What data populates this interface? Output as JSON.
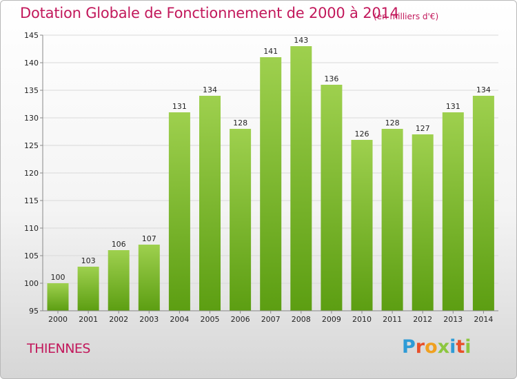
{
  "title": "Dotation Globale de Fonctionnement de 2000 à 2014",
  "unit_note": "(en milliers d'€)",
  "commune": "THIENNES",
  "logo": {
    "text": "Proxiti",
    "colors": [
      "#2e9bd6",
      "#e8502a",
      "#f0a020",
      "#8cc63f",
      "#2e9bd6",
      "#e8502a",
      "#8cc63f"
    ]
  },
  "colors": {
    "bar_top": "#9ed04e",
    "bar_bottom": "#5c9e12",
    "title": "#c2185b"
  },
  "chart_data": {
    "type": "bar",
    "title": "Dotation Globale de Fonctionnement de 2000 à 2014",
    "xlabel": "",
    "ylabel": "",
    "categories": [
      "2000",
      "2001",
      "2002",
      "2003",
      "2004",
      "2005",
      "2006",
      "2007",
      "2008",
      "2009",
      "2010",
      "2011",
      "2012",
      "2013",
      "2014"
    ],
    "values": [
      100,
      103,
      106,
      107,
      131,
      134,
      128,
      141,
      143,
      136,
      126,
      128,
      127,
      131,
      134
    ],
    "ylim": [
      95,
      145
    ],
    "yticks": [
      95,
      100,
      105,
      110,
      115,
      120,
      125,
      130,
      135,
      140,
      145
    ],
    "grid": true
  }
}
